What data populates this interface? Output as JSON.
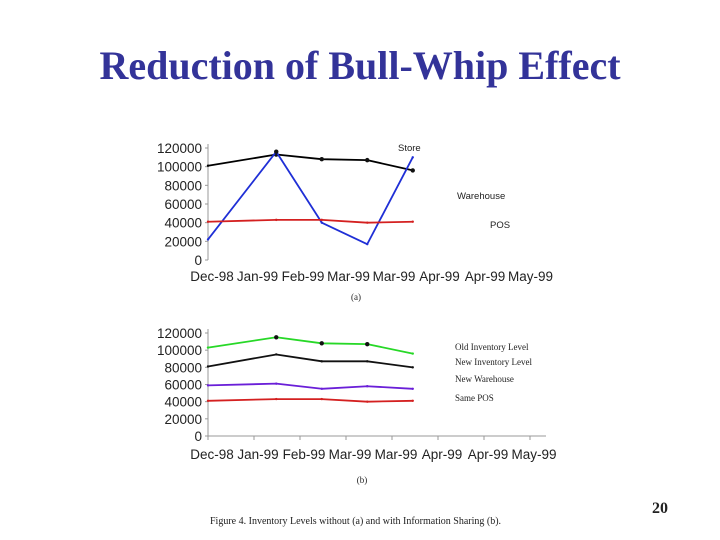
{
  "title": "Reduction of Bull-Whip Effect",
  "page_number": "20",
  "caption": "Figure 4.  Inventory Levels without (a) and with Information Sharing (b).",
  "chart_data": [
    {
      "type": "line",
      "sublabel": "(a)",
      "categories": [
        "Dec-98",
        "Jan-99",
        "Feb-99",
        "Mar-99",
        "Mar-99",
        "Apr-99",
        "Apr-99",
        "May-99"
      ],
      "ylim": [
        0,
        120000
      ],
      "y_ticks": [
        "120000",
        "100000",
        "80000",
        "60000",
        "40000",
        "20000",
        "0"
      ],
      "series": [
        {
          "name": "Store",
          "color": "#000000",
          "x": [
            0,
            1.5,
            2.5,
            3.5,
            4.5
          ],
          "values": [
            101000,
            113000,
            108000,
            107000,
            96000
          ]
        },
        {
          "name": "Warehouse",
          "color": "#1f2fd6",
          "x": [
            0,
            1.5,
            2.5,
            3.5,
            4.5
          ],
          "values": [
            22000,
            116000,
            40000,
            17000,
            110000
          ]
        },
        {
          "name": "POS",
          "color": "#d42020",
          "x": [
            0,
            1.5,
            2.5,
            3.5,
            4.5
          ],
          "values": [
            41000,
            43000,
            43000,
            40000,
            41000
          ]
        }
      ]
    },
    {
      "type": "line",
      "sublabel": "(b)",
      "categories": [
        "Dec-98",
        "Jan-99",
        "Feb-99",
        "Mar-99",
        "Mar-99",
        "Apr-99",
        "Apr-99",
        "May-99"
      ],
      "ylim": [
        0,
        120000
      ],
      "y_ticks": [
        "120000",
        "100000",
        "80000",
        "60000",
        "40000",
        "20000",
        "0"
      ],
      "series": [
        {
          "name": "Old Inventory Level",
          "color": "#27d827",
          "x": [
            0,
            1.5,
            2.5,
            3.5,
            4.5
          ],
          "values": [
            103000,
            115000,
            108000,
            107000,
            96000
          ]
        },
        {
          "name": "New Inventory Level",
          "color": "#111111",
          "x": [
            0,
            1.5,
            2.5,
            3.5,
            4.5
          ],
          "values": [
            81000,
            95000,
            87000,
            87000,
            80000
          ]
        },
        {
          "name": "New Warehouse",
          "color": "#6a1fd8",
          "x": [
            0,
            1.5,
            2.5,
            3.5,
            4.5
          ],
          "values": [
            59000,
            61000,
            55000,
            58000,
            55000
          ]
        },
        {
          "name": "Same POS",
          "color": "#d42020",
          "x": [
            0,
            1.5,
            2.5,
            3.5,
            4.5
          ],
          "values": [
            41000,
            43000,
            43000,
            40000,
            41000
          ]
        }
      ]
    }
  ]
}
